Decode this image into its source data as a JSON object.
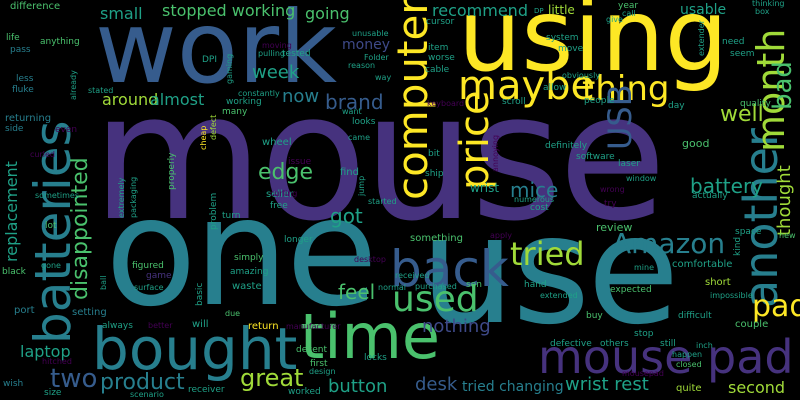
{
  "words": {
    "mouse": "mouse",
    "one": "one",
    "use": "use",
    "using": "using",
    "work": "work",
    "batteries": "batteries",
    "time": "time",
    "bought": "bought",
    "mouse_pad": "mouse pad",
    "back": "back",
    "computer": "computer",
    "another": "another",
    "used": "used",
    "maybe": "maybe",
    "price": "price",
    "month": "month",
    "thing": "thing",
    "tried": "tried",
    "amazon": "Amazon",
    "pad": "pad",
    "two": "two",
    "product": "product",
    "great": "great",
    "disappointed": "disappointed",
    "brand": "brand",
    "edge": "edge",
    "usb": "USB",
    "well": "well",
    "bad": "bad",
    "battery": "battery",
    "mice": "mice",
    "got": "got",
    "feel": "feel",
    "nothing": "nothing",
    "button": "button",
    "desk": "desk",
    "tried_changing": "tried changing",
    "wrist_rest": "wrist rest",
    "second": "second",
    "laptop": "laptop",
    "replacement": "replacement",
    "around": "around",
    "almost": "almost",
    "now": "now",
    "week": "week",
    "small": "small",
    "stopped_working": "stopped working",
    "going": "going",
    "recommend": "recommend",
    "money": "money",
    "thought": "thought",
    "usable": "usable",
    "little": "little",
    "cursor": "cursor",
    "difference": "difference",
    "life": "life",
    "pass": "pass",
    "less": "less",
    "fluke": "fluke",
    "anything": "anything",
    "stated": "stated",
    "returning": "returning",
    "side": "side",
    "even": "even",
    "curled": "curled",
    "sometimes": "sometimes",
    "lot": "lot",
    "gone": "gone",
    "black": "black",
    "port": "port",
    "setting": "setting",
    "hitched": "hitched",
    "wish": "wish",
    "size": "size",
    "scenario": "scenario",
    "extremely": "extremely",
    "packaging": "packaging",
    "properly": "properly",
    "cheap": "cheap",
    "defect": "defect",
    "problem": "problem",
    "turn": "turn",
    "figured": "figured",
    "game": "game",
    "surface": "surface",
    "ball": "ball",
    "basic": "basic",
    "due": "due",
    "will": "will",
    "always": "always",
    "better": "better",
    "receiver": "receiver",
    "worked": "worked",
    "design": "design",
    "decent": "decent",
    "first": "first",
    "return": "return",
    "manufacturer": "manufacturer",
    "locks": "locks",
    "normal": "normal",
    "purchased": "purchased",
    "son": "son",
    "hand": "hand",
    "extended": "extended",
    "buy": "buy",
    "defective": "defective",
    "others": "others",
    "stop": "stop",
    "still": "still",
    "inch": "inch",
    "happen": "happen",
    "closed": "closed",
    "quite": "quite",
    "couple": "couple",
    "short": "short",
    "impossible": "impossible",
    "difficult": "difficult",
    "comfortable": "comfortable",
    "expected": "expected",
    "mine": "mine",
    "space": "space",
    "kind": "kind",
    "new": "new",
    "review": "review",
    "something": "something",
    "desktop": "desktop",
    "simply": "simply",
    "amazing": "amazing",
    "waste": "waste",
    "seller": "seller",
    "free": "free",
    "wheel": "wheel",
    "issue": "issue",
    "curling": "curling",
    "longer": "longer",
    "find": "find",
    "jump": "jump",
    "started": "started",
    "received": "received",
    "apply": "apply",
    "cost": "cost",
    "numerous": "numerous",
    "wrist": "wrist",
    "actually": "actually",
    "try": "try",
    "wrong": "wrong",
    "window": "window",
    "software": "software",
    "definitely": "definitely",
    "laser": "laser",
    "good": "good",
    "quality": "quality",
    "day": "day",
    "people": "people",
    "scroll": "scroll",
    "allow": "allow",
    "obviously": "obviously",
    "keyboard": "keyboard",
    "ship": "ship",
    "bit": "bit",
    "came": "came",
    "want": "want",
    "looks": "looks",
    "annoying": "annoying",
    "many": "many",
    "working": "working",
    "constantly": "constantly",
    "dpi": "DPI",
    "gaming": "gaming",
    "tested": "tested",
    "moving": "moving",
    "pulling": "pulling",
    "reason": "reason",
    "unusable": "unusable",
    "folder": "Folder",
    "cable": "cable",
    "worse": "worse",
    "item": "item",
    "system": "system",
    "move": "move",
    "way": "way",
    "already": "already",
    "year": "year",
    "call": "call",
    "give": "give",
    "thinking": "thinking",
    "box": "box",
    "need": "need",
    "seem": "seem",
    "extender": "extender",
    "mousepad": "mousepad",
    "dp": "DP"
  }
}
